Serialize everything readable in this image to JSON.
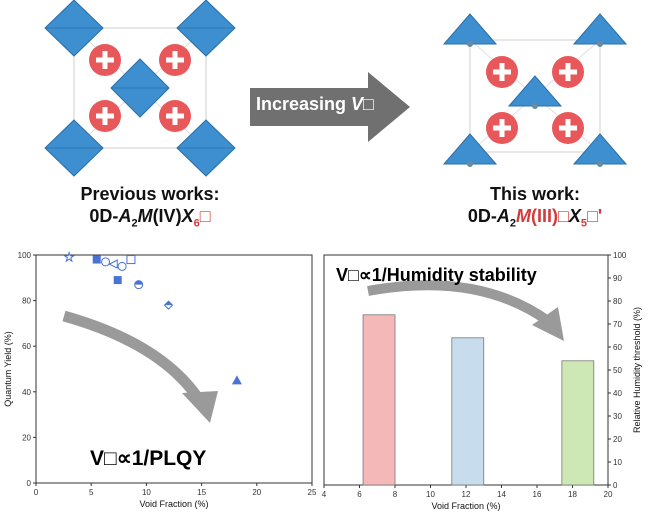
{
  "top": {
    "left_caption_line1": "Previous works:",
    "left_caption_line2_prefix": "0D-",
    "left_caption_A": "A",
    "left_caption_sub2": "2",
    "left_caption_M": "M",
    "left_caption_ox": "(IV)",
    "left_caption_X": "X",
    "left_caption_sub6": "6",
    "left_caption_box": "□",
    "right_caption_line1": "This work:",
    "right_caption_line2_prefix": "0D-",
    "right_caption_A": "A",
    "right_caption_sub2": "2",
    "right_caption_M": "M",
    "right_caption_ox": "(III)",
    "right_caption_box1": "□",
    "right_caption_X": "X",
    "right_caption_sub5": "5",
    "right_caption_box2": "□'",
    "arrow_text": "Increasing ",
    "arrow_text_v": "V□",
    "colors": {
      "polyhedron": "#3d8fd0",
      "cation": "#e8575a",
      "arrow": "#707070",
      "red_text": "#d43a3a"
    }
  },
  "chart_data": [
    {
      "type": "scatter",
      "xlabel": "Void Fraction (%)",
      "ylabel": "Quantum Yield (%)",
      "xlim": [
        0,
        25
      ],
      "ylim": [
        0,
        100
      ],
      "xticks": [
        0,
        5,
        10,
        15,
        20,
        25
      ],
      "yticks": [
        0,
        20,
        40,
        60,
        80,
        100
      ],
      "annotation": "V□∝1/PLQY",
      "points": [
        {
          "x": 3.0,
          "y": 99,
          "marker": "star-open"
        },
        {
          "x": 5.5,
          "y": 98,
          "marker": "square-filled"
        },
        {
          "x": 6.3,
          "y": 97,
          "marker": "circle-open"
        },
        {
          "x": 7.0,
          "y": 96,
          "marker": "triangle-left-open"
        },
        {
          "x": 7.4,
          "y": 89,
          "marker": "square-filled"
        },
        {
          "x": 7.8,
          "y": 95,
          "marker": "circle-open"
        },
        {
          "x": 8.6,
          "y": 98,
          "marker": "square-open"
        },
        {
          "x": 9.3,
          "y": 87,
          "marker": "circle-half"
        },
        {
          "x": 12.0,
          "y": 78,
          "marker": "diamond-half"
        },
        {
          "x": 18.2,
          "y": 45,
          "marker": "triangle-filled"
        }
      ]
    },
    {
      "type": "bar",
      "xlabel": "Void Fraction (%)",
      "ylabel": "Relative Humidity threshold (%)",
      "xlim": [
        4,
        20
      ],
      "ylim": [
        0,
        100
      ],
      "xticks": [
        4,
        6,
        8,
        10,
        12,
        14,
        16,
        18,
        20
      ],
      "yticks": [
        0,
        10,
        20,
        30,
        40,
        50,
        60,
        70,
        80,
        90,
        100
      ],
      "annotation": "V□∝1/Humidity stability",
      "bars": [
        {
          "x_start": 6.2,
          "x_end": 8.0,
          "value": 74,
          "color": "#f5b8b8"
        },
        {
          "x_start": 11.2,
          "x_end": 13.0,
          "value": 64,
          "color": "#c7dcec"
        },
        {
          "x_start": 17.4,
          "x_end": 19.2,
          "value": 54,
          "color": "#cde8b4"
        }
      ]
    }
  ]
}
